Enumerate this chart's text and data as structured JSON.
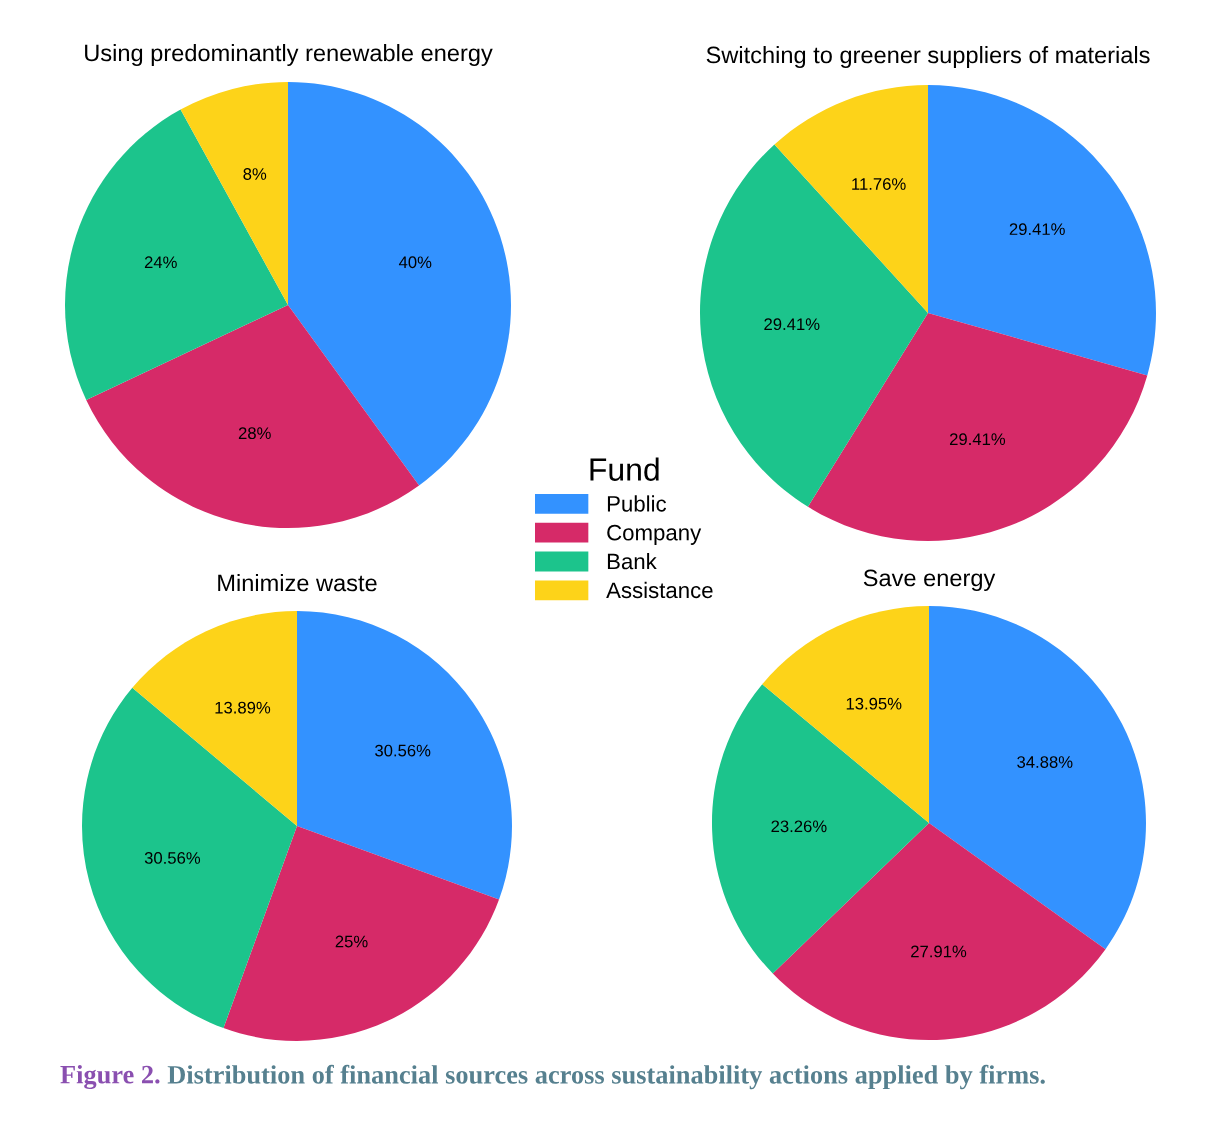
{
  "chart_data": [
    {
      "type": "pie",
      "title": "Using predominantly renewable energy",
      "categories": [
        "Public",
        "Company",
        "Bank",
        "Assistance"
      ],
      "values": [
        40,
        28,
        24,
        8
      ],
      "colors": [
        "#3392ff",
        "#d62a68",
        "#1cc48c",
        "#fdd319"
      ],
      "value_labels": [
        "40%",
        "28%",
        "24%",
        "8%"
      ],
      "legend": "right",
      "legend_title": "Fund",
      "annotations": [
        "Figure 2.",
        "Distribution of financial sources across sustainability actions applied by firms."
      ]
    },
    {
      "type": "pie",
      "title": "Switching to greener suppliers of materials",
      "categories": [
        null,
        null,
        null,
        null
      ],
      "values": [
        29.41,
        29.41,
        29.41,
        11.76
      ],
      "colors": [
        "#3392ff",
        "#d62a68",
        "#1cc48c",
        "#fdd319"
      ],
      "value_labels": [
        "29.41%",
        "29.41%",
        "29.41%",
        "11.76%"
      ]
    },
    {
      "type": "pie",
      "title": "Minimize waste",
      "categories": [
        null,
        null,
        null,
        null
      ],
      "values": [
        30.56,
        25,
        30.56,
        13.89
      ],
      "colors": [
        "#3392ff",
        "#d62a68",
        "#1cc48c",
        "#fdd319"
      ],
      "value_labels": [
        "30.56%",
        "25%",
        "30.56%",
        "13.89%"
      ]
    },
    {
      "type": "pie",
      "title": "Save energy",
      "categories": [
        null,
        null,
        null,
        null
      ],
      "values": [
        34.88,
        27.91,
        23.26,
        13.95
      ],
      "colors": [
        "#3392ff",
        "#d62a68",
        "#1cc48c",
        "#fdd319"
      ],
      "value_labels": [
        "34.88%",
        "27.91%",
        "23.26%",
        "13.95%"
      ]
    }
  ]
}
